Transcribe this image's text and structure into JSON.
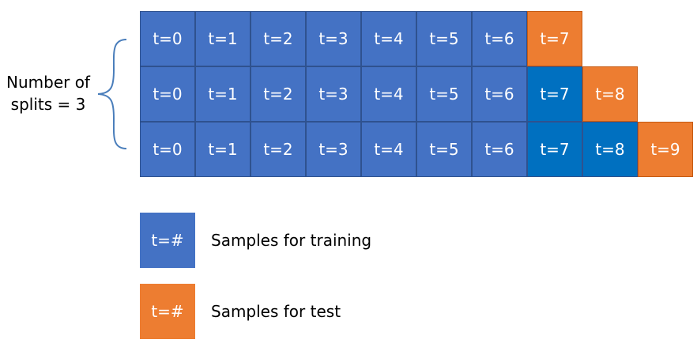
{
  "split_label_line1": "Number of",
  "split_label_line2": "splits = 3",
  "rows": [
    {
      "cells": [
        {
          "label": "t=0",
          "kind": "train"
        },
        {
          "label": "t=1",
          "kind": "train"
        },
        {
          "label": "t=2",
          "kind": "train"
        },
        {
          "label": "t=3",
          "kind": "train"
        },
        {
          "label": "t=4",
          "kind": "train"
        },
        {
          "label": "t=5",
          "kind": "train"
        },
        {
          "label": "t=6",
          "kind": "train"
        },
        {
          "label": "t=7",
          "kind": "test"
        }
      ]
    },
    {
      "cells": [
        {
          "label": "t=0",
          "kind": "train"
        },
        {
          "label": "t=1",
          "kind": "train"
        },
        {
          "label": "t=2",
          "kind": "train"
        },
        {
          "label": "t=3",
          "kind": "train"
        },
        {
          "label": "t=4",
          "kind": "train"
        },
        {
          "label": "t=5",
          "kind": "train"
        },
        {
          "label": "t=6",
          "kind": "train"
        },
        {
          "label": "t=7",
          "kind": "train-alt"
        },
        {
          "label": "t=8",
          "kind": "test"
        }
      ]
    },
    {
      "cells": [
        {
          "label": "t=0",
          "kind": "train"
        },
        {
          "label": "t=1",
          "kind": "train"
        },
        {
          "label": "t=2",
          "kind": "train"
        },
        {
          "label": "t=3",
          "kind": "train"
        },
        {
          "label": "t=4",
          "kind": "train"
        },
        {
          "label": "t=5",
          "kind": "train"
        },
        {
          "label": "t=6",
          "kind": "train"
        },
        {
          "label": "t=7",
          "kind": "train-alt"
        },
        {
          "label": "t=8",
          "kind": "train-alt"
        },
        {
          "label": "t=9",
          "kind": "test"
        }
      ]
    }
  ],
  "legend": {
    "training": {
      "box_label": "t=#",
      "text": "Samples for training"
    },
    "test": {
      "box_label": "t=#",
      "text": "Samples for test"
    }
  },
  "colors": {
    "train": "#4472c4",
    "train_alt": "#0070c0",
    "test": "#ed7d31",
    "brace": "#4a7ebb"
  }
}
